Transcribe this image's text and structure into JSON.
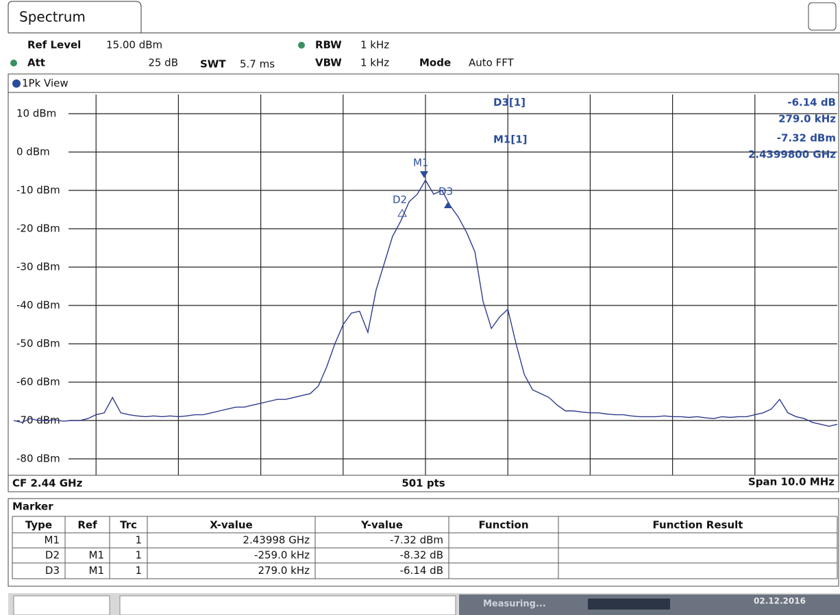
{
  "tab": "Spectrum",
  "settings": {
    "ref_level_label": "Ref Level",
    "ref_level": "15.00 dBm",
    "att_label": "Att",
    "att": "25 dB",
    "swt_label": "SWT",
    "swt": "5.7 ms",
    "rbw_label": "RBW",
    "rbw": "1 kHz",
    "vbw_label": "VBW",
    "vbw": "1 kHz",
    "mode_label": "Mode",
    "mode": "Auto FFT"
  },
  "chart_data": {
    "type": "line",
    "series": [
      {
        "name": "1Pk View",
        "color": "#2e3a8c",
        "values": [
          -70,
          -70.5,
          -69.5,
          -70,
          -70,
          -69.8,
          -70.2,
          -70,
          -70,
          -69.5,
          -68.5,
          -68,
          -64,
          -68,
          -68.5,
          -68.8,
          -69,
          -68.8,
          -69,
          -68.8,
          -69,
          -68.8,
          -68.5,
          -68.5,
          -68,
          -67.5,
          -67,
          -66.5,
          -66.5,
          -66,
          -65.5,
          -65,
          -64.5,
          -64.5,
          -64,
          -63.5,
          -63,
          -61,
          -56,
          -50,
          -45,
          -42,
          -41.5,
          -47,
          -36,
          -29,
          -22,
          -18,
          -13,
          -11,
          -7.32,
          -11,
          -10,
          -14,
          -17,
          -21,
          -26,
          -39,
          -46,
          -43,
          -41,
          -50,
          -58,
          -62,
          -63,
          -64,
          -66,
          -67.5,
          -67.5,
          -67.8,
          -68,
          -68,
          -68.3,
          -68.5,
          -68.5,
          -68.8,
          -69,
          -69,
          -69,
          -68.8,
          -69,
          -69,
          -69.2,
          -69,
          -69.3,
          -69.5,
          -69,
          -69.2,
          -69,
          -69,
          -68.5,
          -68,
          -67,
          -64.5,
          -68,
          -69,
          -69.5,
          -70.5,
          -71,
          -71.5,
          -71
        ]
      }
    ],
    "ylim": [
      -85,
      15
    ],
    "yticks": [
      {
        "value": 10,
        "label": "10 dBm"
      },
      {
        "value": 0,
        "label": "0 dBm"
      },
      {
        "value": -10,
        "label": "-10 dBm"
      },
      {
        "value": -20,
        "label": "-20 dBm"
      },
      {
        "value": -30,
        "label": "-30 dBm"
      },
      {
        "value": -40,
        "label": "-40 dBm"
      },
      {
        "value": -50,
        "label": "-50 dBm"
      },
      {
        "value": -60,
        "label": "-60 dBm"
      },
      {
        "value": -70,
        "label": "-70 dBm"
      },
      {
        "value": -80,
        "label": "-80 dBm"
      }
    ],
    "grid": true,
    "center": "CF 2.44 GHz",
    "points": "501 pts",
    "span": "Span 10.0 MHz",
    "markers": [
      "M1",
      "D2",
      "D3"
    ],
    "marker_info": [
      [
        "D3[1]",
        "-6.14 dB",
        "279.0 kHz"
      ],
      [
        "M1[1]",
        "-7.32 dBm",
        "2.4399800 GHz"
      ]
    ]
  },
  "marker_table": {
    "title": "Marker",
    "header": [
      "Type",
      "Ref",
      "Trc",
      "X-value",
      "Y-value",
      "Function",
      "Function Result"
    ],
    "rows": [
      [
        "M1",
        "",
        "1",
        "2.43998 GHz",
        "-7.32 dBm",
        "",
        ""
      ],
      [
        "D2",
        "M1",
        "1",
        "-259.0 kHz",
        "-8.32 dB",
        "",
        ""
      ],
      [
        "D3",
        "M1",
        "1",
        "279.0 kHz",
        "-6.14 dB",
        "",
        ""
      ]
    ]
  },
  "status": {
    "state": "Measuring...",
    "date": "02.12.2016"
  }
}
